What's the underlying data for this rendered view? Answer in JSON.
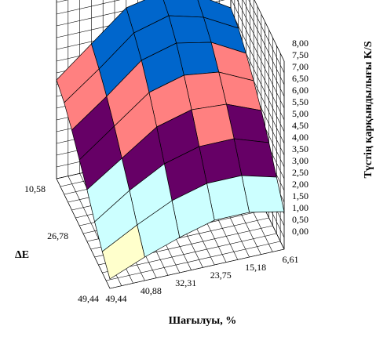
{
  "chart_data": {
    "type": "surface",
    "z_title": "Түстің қарқындылығы K/S",
    "x_title": "Шағылуы, %",
    "y_title": "ΔE",
    "x_categories": [
      "6,61",
      "15,18",
      "23,75",
      "32,31",
      "40,88",
      "49,44"
    ],
    "y_categories": [
      "10,58",
      null,
      null,
      "26,78",
      null,
      null,
      null,
      "49,44"
    ],
    "z_values": [
      [
        5.6,
        6.5,
        6.9,
        6.6,
        5.4,
        4.2
      ],
      [
        5.4,
        6.2,
        6.6,
        6.2,
        5.0,
        3.9
      ],
      [
        5.0,
        5.8,
        6.1,
        5.7,
        4.5,
        3.4
      ],
      [
        4.5,
        5.2,
        5.4,
        5.0,
        3.9,
        2.8
      ],
      [
        3.9,
        4.5,
        4.6,
        4.2,
        3.2,
        2.2
      ],
      [
        3.2,
        3.7,
        3.7,
        3.3,
        2.5,
        1.5
      ],
      [
        2.4,
        2.8,
        2.8,
        2.4,
        1.7,
        0.9
      ],
      [
        1.6,
        1.9,
        1.9,
        1.5,
        1.0,
        0.4
      ]
    ],
    "zlim": [
      0,
      8
    ],
    "zticks": [
      {
        "value": 0,
        "label": "0,00"
      },
      {
        "value": 0.5,
        "label": "0,50"
      },
      {
        "value": 1,
        "label": "1,00"
      },
      {
        "value": 1.5,
        "label": "1,50"
      },
      {
        "value": 2,
        "label": "2,00"
      },
      {
        "value": 2.5,
        "label": "2,50"
      },
      {
        "value": 3,
        "label": "3,00"
      },
      {
        "value": 3.5,
        "label": "3,50"
      },
      {
        "value": 4,
        "label": "4,00"
      },
      {
        "value": 4.5,
        "label": "4,50"
      },
      {
        "value": 5,
        "label": "5,00"
      },
      {
        "value": 5.5,
        "label": "5,50"
      },
      {
        "value": 6,
        "label": "6,00"
      },
      {
        "value": 6.5,
        "label": "6,50"
      },
      {
        "value": 7,
        "label": "7,00"
      },
      {
        "value": 7.5,
        "label": "7,50"
      },
      {
        "value": 8,
        "label": "8,00"
      }
    ],
    "band_colors": [
      "#ffffcc",
      "#ccffff",
      "#660066",
      "#ff8080",
      "#0066cc",
      "#ccccff"
    ],
    "grid": true
  }
}
